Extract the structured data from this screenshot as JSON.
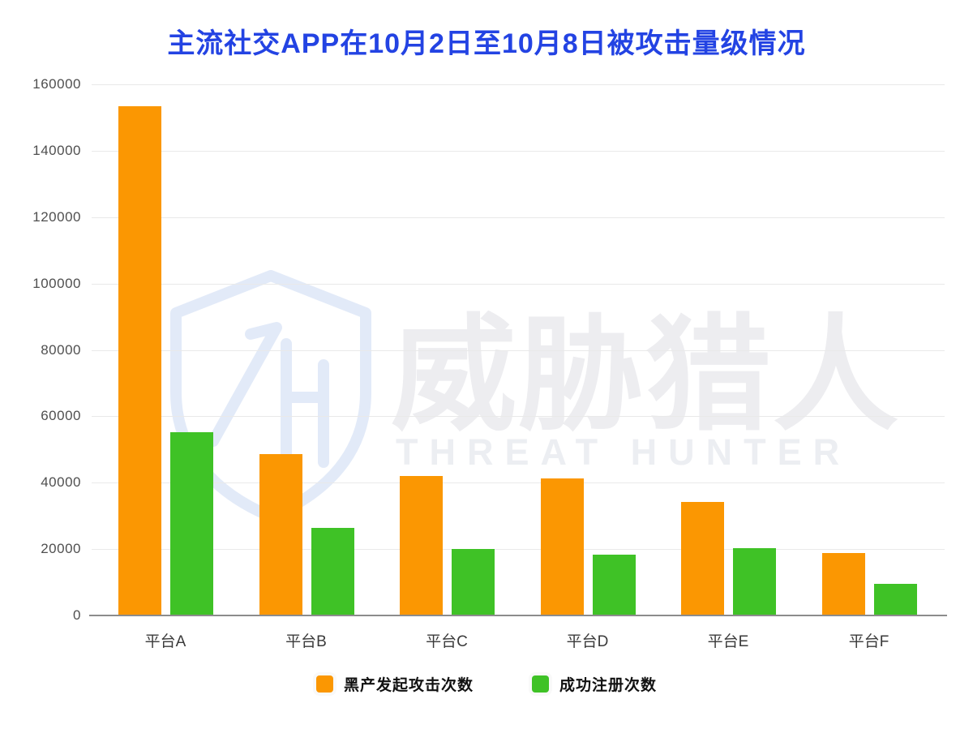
{
  "title": "主流社交APP在10月2日至10月8日被攻击量级情况",
  "watermark": {
    "logo": "threat-hunter-shield",
    "cn_text": "威胁猎人",
    "en_text": "THREAT HUNTER"
  },
  "colors": {
    "title_blue": "#2343e3",
    "attack_orange": "#FB9702",
    "register_green": "#3FC226",
    "gridline": "#e9e9e9",
    "axis": "#8c8c8c",
    "tick_label": "#4f4f4f",
    "watermark_blue": "#ccdaf3",
    "watermark_gray": "#ededf0"
  },
  "chart_data": {
    "type": "bar",
    "title": "主流社交APP在10月2日至10月8日被攻击量级情况",
    "categories": [
      "平台A",
      "平台B",
      "平台C",
      "平台D",
      "平台E",
      "平台F"
    ],
    "series": [
      {
        "key": "attack-count",
        "name": "黑产发起攻击次数",
        "color": "#FB9702",
        "values": [
          153300,
          48700,
          42100,
          41200,
          34100,
          18900
        ]
      },
      {
        "key": "register-count",
        "name": "成功注册次数",
        "color": "#3FC226",
        "values": [
          55100,
          26400,
          20000,
          18300,
          20300,
          9600
        ]
      }
    ],
    "xlabel": "",
    "ylabel": "",
    "ylim": [
      0,
      160000
    ],
    "yticks": [
      0,
      20000,
      40000,
      60000,
      80000,
      100000,
      120000,
      140000,
      160000
    ],
    "grid": true,
    "legend_position": "bottom"
  }
}
